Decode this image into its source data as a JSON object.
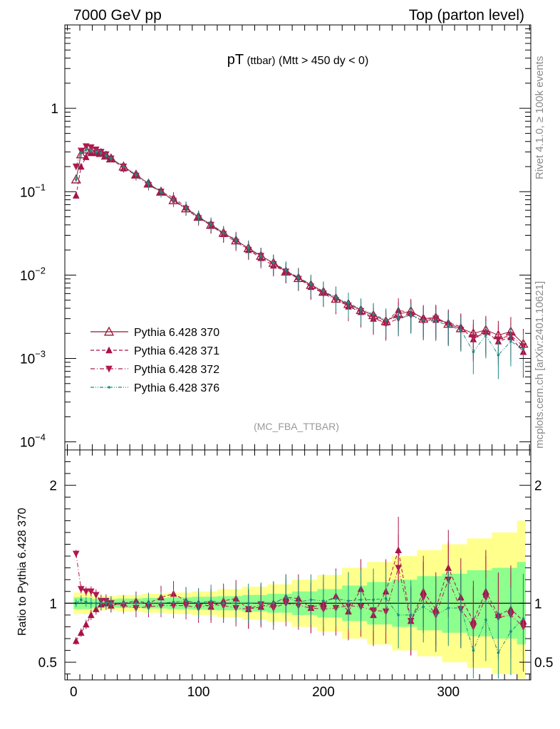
{
  "header": {
    "left": "7000 GeV pp",
    "right": "Top (parton level)"
  },
  "side_labels": {
    "rivet": "Rivet 4.1.0, ≥ 100k events",
    "mcplots": "mcplots.cern.ch [arXiv:2401.10621]"
  },
  "colors": {
    "p370": "#9b1030",
    "p371": "#a8124a",
    "p372": "#b0184e",
    "p376": "#1a8c80",
    "band_yellow": "#ffff8c",
    "band_green": "#8cff8c"
  },
  "chart_data": [
    {
      "type": "scatter",
      "title_main": "pT",
      "title_sub": "(ttbar)",
      "title_cut": "(Mtt > 450 dy < 0)",
      "watermark": "(MC_FBA_TTBAR)",
      "xlabel": "",
      "ylabel": "",
      "yscale": "log",
      "xlim": [
        -7,
        366
      ],
      "ylim": [
        8e-05,
        10
      ],
      "y_ticks": [
        {
          "value": 1,
          "label": "1"
        },
        {
          "value": 0.1,
          "label": "10",
          "exp": "−1"
        },
        {
          "value": 0.01,
          "label": "10",
          "exp": "−2"
        },
        {
          "value": 0.001,
          "label": "10",
          "exp": "−3"
        },
        {
          "value": 0.0001,
          "label": "10",
          "exp": "−4"
        }
      ],
      "legend": [
        {
          "key": "p370",
          "label": "Pythia 6.428 370",
          "marker": "triangle-up-open",
          "line": "solid"
        },
        {
          "key": "p371",
          "label": "Pythia 6.428 371",
          "marker": "triangle-up",
          "line": "dashed"
        },
        {
          "key": "p372",
          "label": "Pythia 6.428 372",
          "marker": "triangle-down",
          "line": "dashdot"
        },
        {
          "key": "p376",
          "label": "Pythia 6.428 376",
          "marker": "dot",
          "line": "dashdotdot"
        }
      ],
      "series": [
        {
          "key": "p370",
          "x": [
            2,
            6,
            10,
            14,
            18,
            22,
            26,
            30,
            40,
            50,
            60,
            70,
            80,
            90,
            100,
            110,
            120,
            130,
            140,
            150,
            160,
            170,
            180,
            190,
            200,
            210,
            220,
            230,
            240,
            250,
            260,
            270,
            280,
            290,
            300,
            310,
            320,
            330,
            340,
            350,
            360
          ],
          "y": [
            0.14,
            0.28,
            0.32,
            0.31,
            0.3,
            0.29,
            0.27,
            0.25,
            0.2,
            0.16,
            0.125,
            0.1,
            0.079,
            0.063,
            0.05,
            0.04,
            0.032,
            0.026,
            0.021,
            0.017,
            0.014,
            0.011,
            0.0092,
            0.0076,
            0.0063,
            0.0052,
            0.0045,
            0.0038,
            0.0033,
            0.0028,
            0.0034,
            0.0037,
            0.003,
            0.0031,
            0.0026,
            0.0023,
            0.002,
            0.0022,
            0.0019,
            0.0021,
            0.0015
          ]
        },
        {
          "key": "p371",
          "x": [
            2,
            6,
            10,
            14,
            18,
            22,
            26,
            30,
            40,
            50,
            60,
            70,
            80,
            90,
            100,
            110,
            120,
            130,
            140,
            150,
            160,
            170,
            180,
            190,
            200,
            210,
            220,
            230,
            240,
            250,
            260,
            270,
            280,
            290,
            300,
            310,
            320,
            330,
            340,
            350,
            360
          ],
          "y": [
            0.09,
            0.2,
            0.26,
            0.29,
            0.29,
            0.29,
            0.27,
            0.25,
            0.19,
            0.16,
            0.125,
            0.1,
            0.085,
            0.065,
            0.05,
            0.039,
            0.031,
            0.027,
            0.02,
            0.016,
            0.013,
            0.011,
            0.0095,
            0.0072,
            0.0062,
            0.0055,
            0.0042,
            0.0036,
            0.003,
            0.0027,
            0.0038,
            0.0035,
            0.0031,
            0.0029,
            0.0027,
            0.0024,
            0.0017,
            0.0021,
            0.0016,
            0.0018,
            0.0012
          ]
        },
        {
          "key": "p372",
          "x": [
            2,
            6,
            10,
            14,
            18,
            22,
            26,
            30,
            40,
            50,
            60,
            70,
            80,
            90,
            100,
            110,
            120,
            130,
            140,
            150,
            160,
            170,
            180,
            190,
            200,
            210,
            220,
            230,
            240,
            250,
            260,
            270,
            280,
            290,
            300,
            310,
            320,
            330,
            340,
            350,
            360
          ],
          "y": [
            0.2,
            0.31,
            0.35,
            0.34,
            0.32,
            0.3,
            0.28,
            0.25,
            0.2,
            0.155,
            0.12,
            0.1,
            0.078,
            0.062,
            0.048,
            0.04,
            0.031,
            0.025,
            0.02,
            0.017,
            0.0135,
            0.011,
            0.009,
            0.0073,
            0.006,
            0.005,
            0.0043,
            0.0037,
            0.0031,
            0.0026,
            0.003,
            0.0033,
            0.0028,
            0.003,
            0.0025,
            0.0022,
            0.0018,
            0.002,
            0.0017,
            0.0019,
            0.0014
          ]
        },
        {
          "key": "p376",
          "x": [
            2,
            6,
            10,
            14,
            18,
            22,
            26,
            30,
            40,
            50,
            60,
            70,
            80,
            90,
            100,
            110,
            120,
            130,
            140,
            150,
            160,
            170,
            180,
            190,
            200,
            210,
            220,
            230,
            240,
            250,
            260,
            270,
            280,
            290,
            300,
            310,
            320,
            330,
            340,
            350,
            360
          ],
          "y": [
            0.14,
            0.29,
            0.32,
            0.31,
            0.3,
            0.29,
            0.27,
            0.25,
            0.2,
            0.16,
            0.125,
            0.1,
            0.08,
            0.064,
            0.05,
            0.041,
            0.032,
            0.026,
            0.021,
            0.017,
            0.014,
            0.0115,
            0.0093,
            0.0078,
            0.0064,
            0.0054,
            0.0046,
            0.0039,
            0.0034,
            0.0029,
            0.0031,
            0.0033,
            0.0029,
            0.0028,
            0.0025,
            0.0022,
            0.0012,
            0.0019,
            0.0011,
            0.0016,
            0.0013
          ]
        }
      ]
    },
    {
      "type": "scatter",
      "title": "",
      "xlabel": "",
      "ylabel": "Ratio to Pythia 6.428 370",
      "xlim": [
        -7,
        366
      ],
      "ylim": [
        0.35,
        2.3
      ],
      "x_ticks": [
        0,
        100,
        200,
        300
      ],
      "y_ticks": [
        0.5,
        1,
        2
      ],
      "reference": 1,
      "bands": {
        "x": [
          0,
          20,
          40,
          60,
          80,
          100,
          120,
          140,
          160,
          180,
          200,
          220,
          240,
          260,
          280,
          300,
          320,
          340,
          360
        ],
        "yellow_halfwidth": [
          0.09,
          0.06,
          0.07,
          0.08,
          0.09,
          0.1,
          0.12,
          0.14,
          0.16,
          0.2,
          0.24,
          0.3,
          0.35,
          0.4,
          0.45,
          0.5,
          0.55,
          0.6,
          0.7
        ],
        "green_halfwidth": [
          0.05,
          0.035,
          0.04,
          0.045,
          0.05,
          0.055,
          0.06,
          0.07,
          0.08,
          0.1,
          0.12,
          0.15,
          0.18,
          0.2,
          0.23,
          0.25,
          0.28,
          0.3,
          0.35
        ]
      },
      "series": [
        {
          "key": "p371",
          "x": [
            2,
            6,
            10,
            14,
            18,
            22,
            26,
            30,
            40,
            50,
            60,
            70,
            80,
            90,
            100,
            110,
            120,
            130,
            140,
            150,
            160,
            170,
            180,
            190,
            200,
            210,
            220,
            230,
            240,
            250,
            260,
            270,
            280,
            290,
            300,
            310,
            320,
            330,
            340,
            350,
            360
          ],
          "y": [
            0.68,
            0.75,
            0.82,
            0.9,
            0.95,
            0.99,
            1.0,
            0.98,
            1.0,
            1.02,
            1.0,
            1.05,
            1.08,
            1.02,
            1.0,
            0.97,
            1.02,
            1.04,
            0.95,
            0.97,
            1.0,
            1.05,
            1.04,
            0.96,
            1.0,
            1.06,
            0.93,
            1.12,
            0.9,
            1.1,
            1.45,
            0.85,
            1.1,
            0.95,
            1.3,
            1.05,
            0.85,
            1.1,
            0.9,
            0.95,
            0.85
          ]
        },
        {
          "key": "p372",
          "x": [
            2,
            6,
            10,
            14,
            18,
            22,
            26,
            30,
            40,
            50,
            60,
            70,
            80,
            90,
            100,
            110,
            120,
            130,
            140,
            150,
            160,
            170,
            180,
            190,
            200,
            210,
            220,
            230,
            240,
            250,
            260,
            270,
            280,
            290,
            300,
            310,
            320,
            330,
            340,
            350,
            360
          ],
          "y": [
            1.42,
            1.12,
            1.1,
            1.1,
            1.07,
            1.02,
            1.02,
            1.0,
            0.98,
            0.96,
            0.97,
            0.98,
            0.98,
            0.98,
            0.96,
            0.99,
            0.98,
            0.96,
            0.95,
            0.99,
            0.96,
            1.0,
            0.98,
            0.96,
            0.95,
            0.96,
            0.98,
            0.97,
            0.94,
            0.93,
            1.3,
            0.85,
            1.05,
            0.9,
            1.2,
            0.95,
            0.8,
            1.05,
            0.88,
            0.9,
            0.8
          ]
        },
        {
          "key": "p376",
          "x": [
            2,
            6,
            10,
            14,
            18,
            22,
            26,
            30,
            40,
            50,
            60,
            70,
            80,
            90,
            100,
            110,
            120,
            130,
            140,
            150,
            160,
            170,
            180,
            190,
            200,
            210,
            220,
            230,
            240,
            250,
            260,
            270,
            280,
            290,
            300,
            310,
            320,
            330,
            340,
            350,
            360
          ],
          "y": [
            1.0,
            1.03,
            1.01,
            1.0,
            1.0,
            1.0,
            1.0,
            1.0,
            1.0,
            1.0,
            1.0,
            1.0,
            1.01,
            1.02,
            1.0,
            1.02,
            1.0,
            1.0,
            1.0,
            1.0,
            1.0,
            1.05,
            1.01,
            1.03,
            1.02,
            1.04,
            1.02,
            1.03,
            1.03,
            1.04,
            0.9,
            0.9,
            0.97,
            0.9,
            0.96,
            0.96,
            0.6,
            0.86,
            0.58,
            0.76,
            0.87
          ]
        }
      ]
    }
  ]
}
